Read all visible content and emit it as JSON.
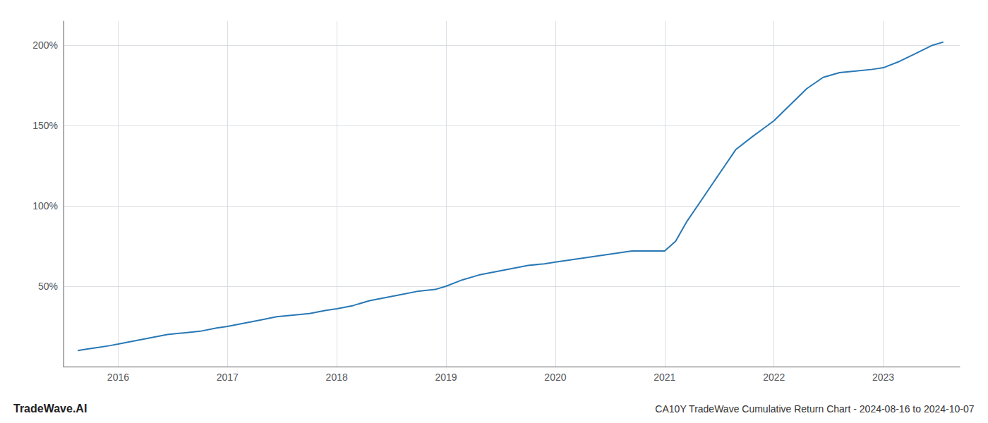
{
  "chart_data": {
    "type": "line",
    "title": "CA10Y TradeWave Cumulative Return Chart - 2024-08-16 to 2024-10-07",
    "annotations": [
      "TradeWave.AI"
    ],
    "color": "#2878b5",
    "grid": true,
    "x": [
      2015.63,
      2015.72,
      2015.82,
      2015.92,
      2016.0,
      2016.15,
      2016.3,
      2016.45,
      2016.6,
      2016.75,
      2016.9,
      2017.0,
      2017.15,
      2017.3,
      2017.45,
      2017.6,
      2017.75,
      2017.9,
      2018.0,
      2018.15,
      2018.3,
      2018.45,
      2018.6,
      2018.75,
      2018.9,
      2019.0,
      2019.15,
      2019.3,
      2019.45,
      2019.6,
      2019.75,
      2019.9,
      2020.0,
      2020.1,
      2020.2,
      2020.3,
      2020.5,
      2020.7,
      2020.9,
      2021.0,
      2021.1,
      2021.2,
      2021.35,
      2021.5,
      2021.65,
      2021.8,
      2021.9,
      2022.0,
      2022.15,
      2022.3,
      2022.45,
      2022.6,
      2022.75,
      2022.9,
      2023.0,
      2023.15,
      2023.3,
      2023.45,
      2023.55
    ],
    "values": [
      10,
      11,
      12,
      13,
      14,
      16,
      18,
      20,
      21,
      22,
      24,
      25,
      27,
      29,
      31,
      32,
      33,
      35,
      36,
      38,
      41,
      43,
      45,
      47,
      48,
      50,
      54,
      57,
      59,
      61,
      63,
      64,
      65,
      66,
      67,
      68,
      70,
      72,
      72,
      72,
      78,
      90,
      105,
      120,
      135,
      143,
      148,
      153,
      163,
      173,
      180,
      183,
      184,
      185,
      186,
      190,
      195,
      200,
      202
    ],
    "xlim": [
      2015.5,
      2023.7
    ],
    "xticks": [
      2016,
      2017,
      2018,
      2019,
      2020,
      2021,
      2022,
      2023
    ],
    "ylim": [
      0,
      215
    ],
    "yticks": [
      {
        "value": 50,
        "label": "50%"
      },
      {
        "value": 100,
        "label": "100%"
      },
      {
        "value": 150,
        "label": "150%"
      },
      {
        "value": 200,
        "label": "200%"
      }
    ]
  }
}
